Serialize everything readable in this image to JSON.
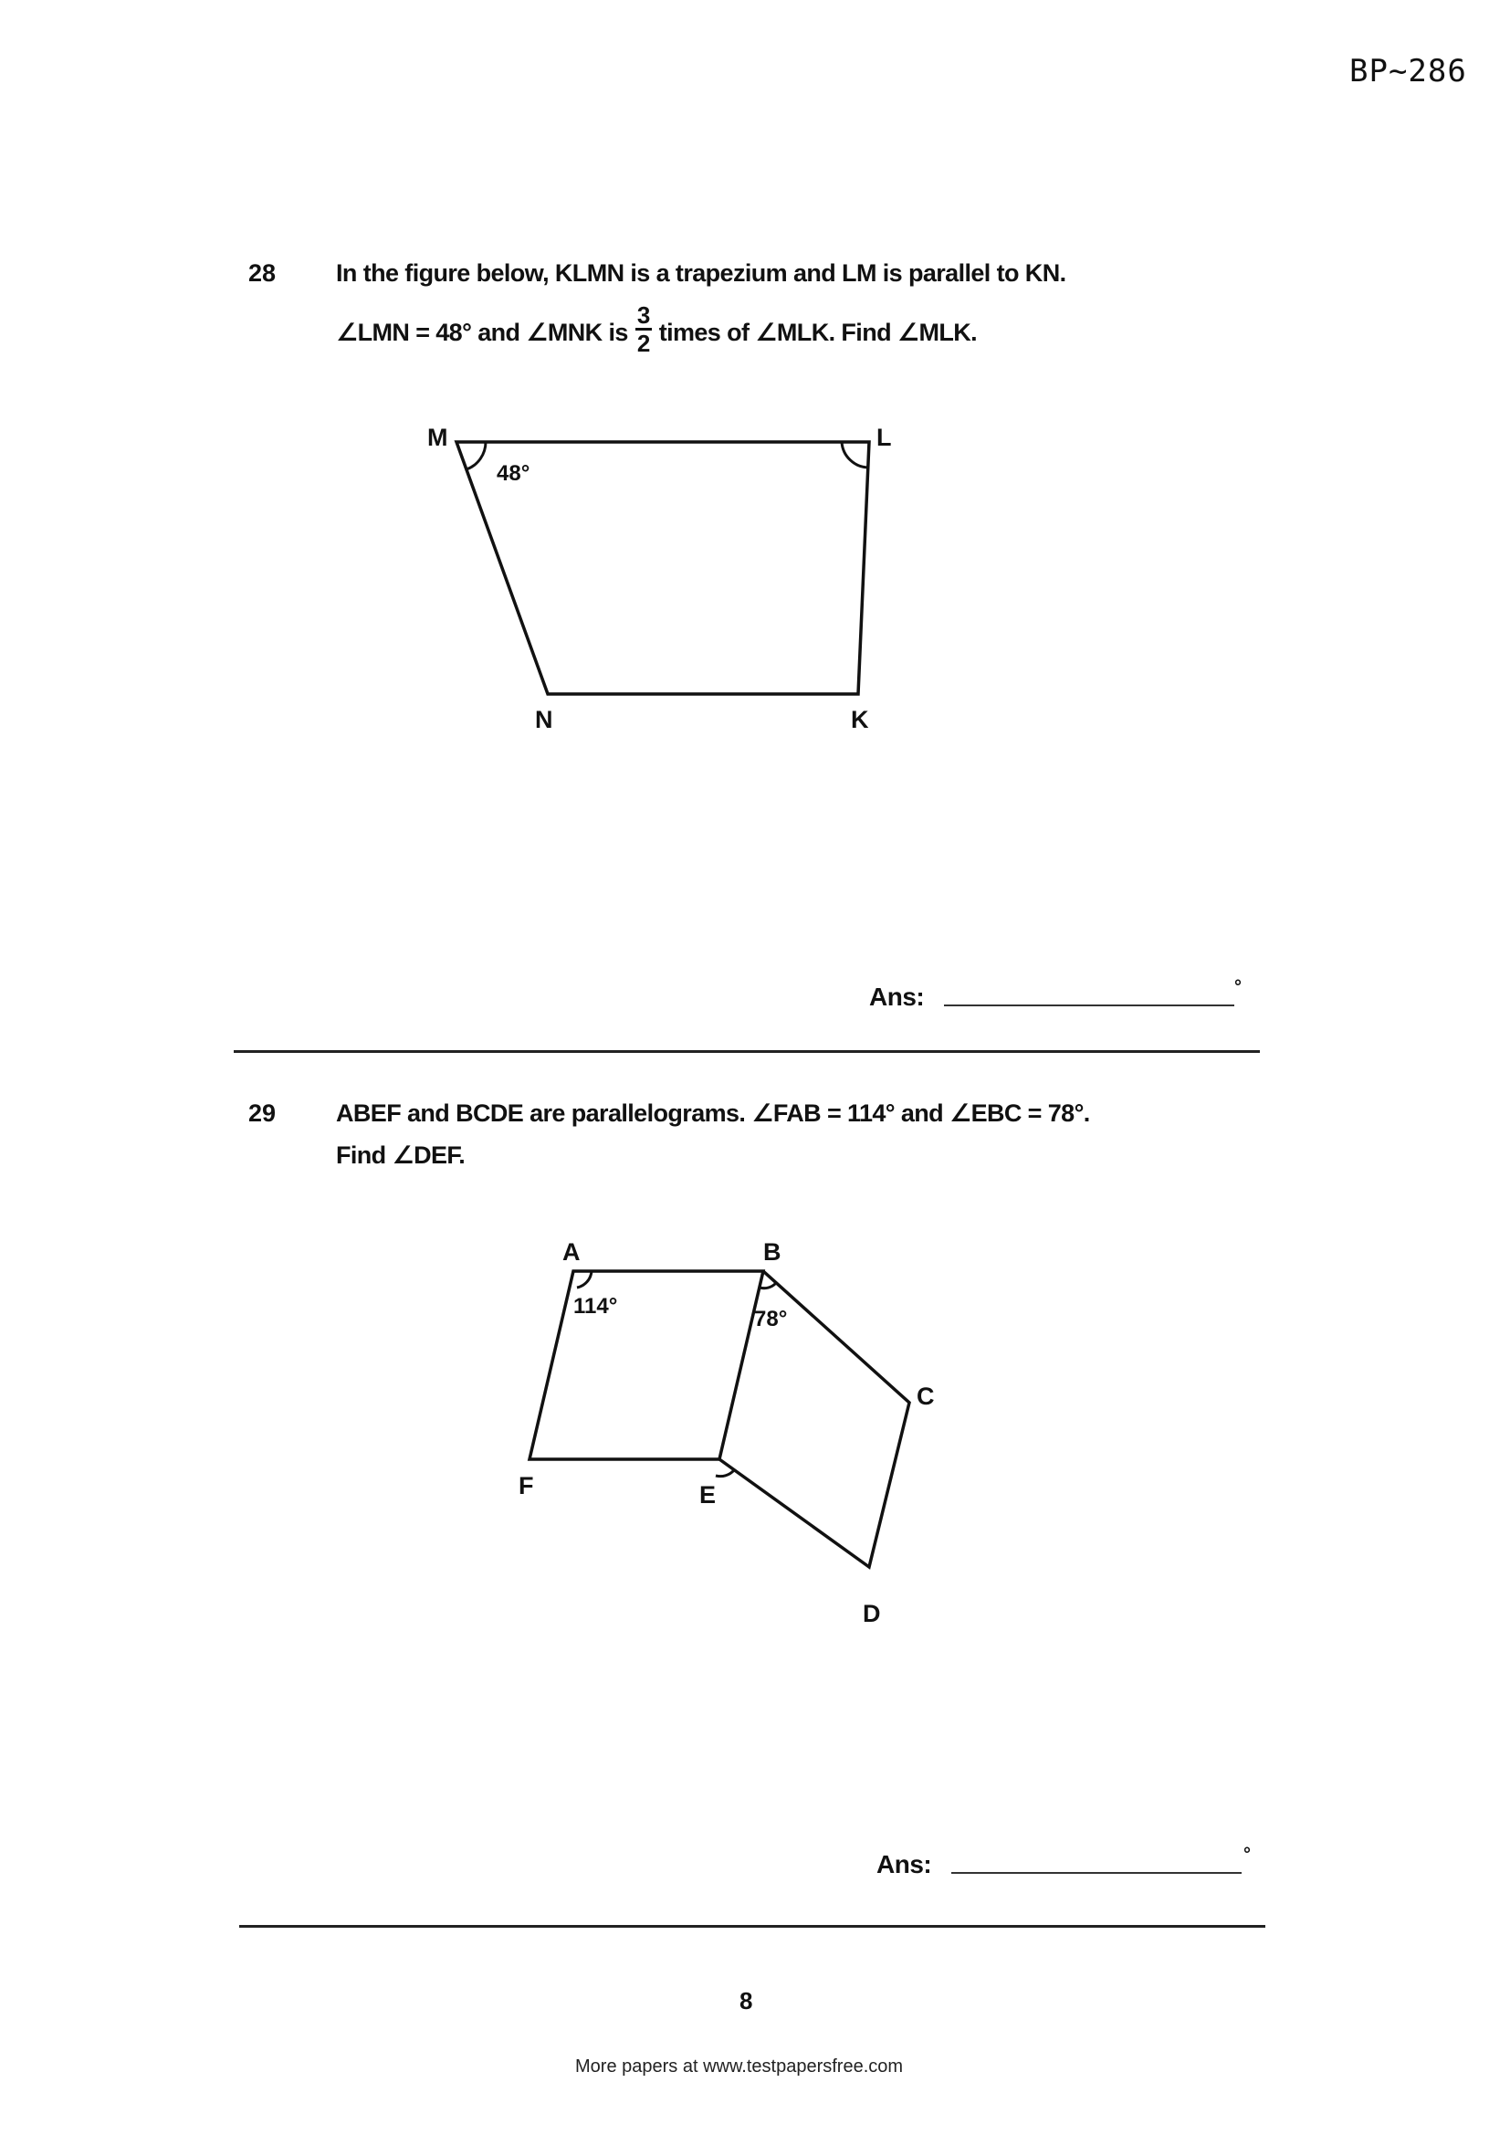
{
  "header": {
    "paper_code": "BP~286"
  },
  "questions": [
    {
      "number": "28",
      "line1": "In the figure below, KLMN is a trapezium and LM is parallel to KN.",
      "line2_part1": "∠LMN = 48° and  ∠MNK is",
      "fraction_numerator": "3",
      "fraction_denominator": "2",
      "line2_part2": "times of  ∠MLK.   Find  ∠MLK.",
      "figure": {
        "labels": {
          "M": "M",
          "L": "L",
          "N": "N",
          "K": "K"
        },
        "angle_label": "48°"
      },
      "answer_label": "Ans:",
      "answer_unit": "°"
    },
    {
      "number": "29",
      "line1": "ABEF and BCDE are parallelograms.   ∠FAB = 114°  and ∠EBC = 78°.",
      "line2": "Find ∠DEF.",
      "figure": {
        "labels": {
          "A": "A",
          "B": "B",
          "C": "C",
          "D": "D",
          "E": "E",
          "F": "F"
        },
        "angle_A": "114°",
        "angle_B": "78°"
      },
      "answer_label": "Ans:",
      "answer_unit": "°"
    }
  ],
  "page_number": "8",
  "footer": {
    "text": "More papers at www.testpapersfree.com"
  }
}
